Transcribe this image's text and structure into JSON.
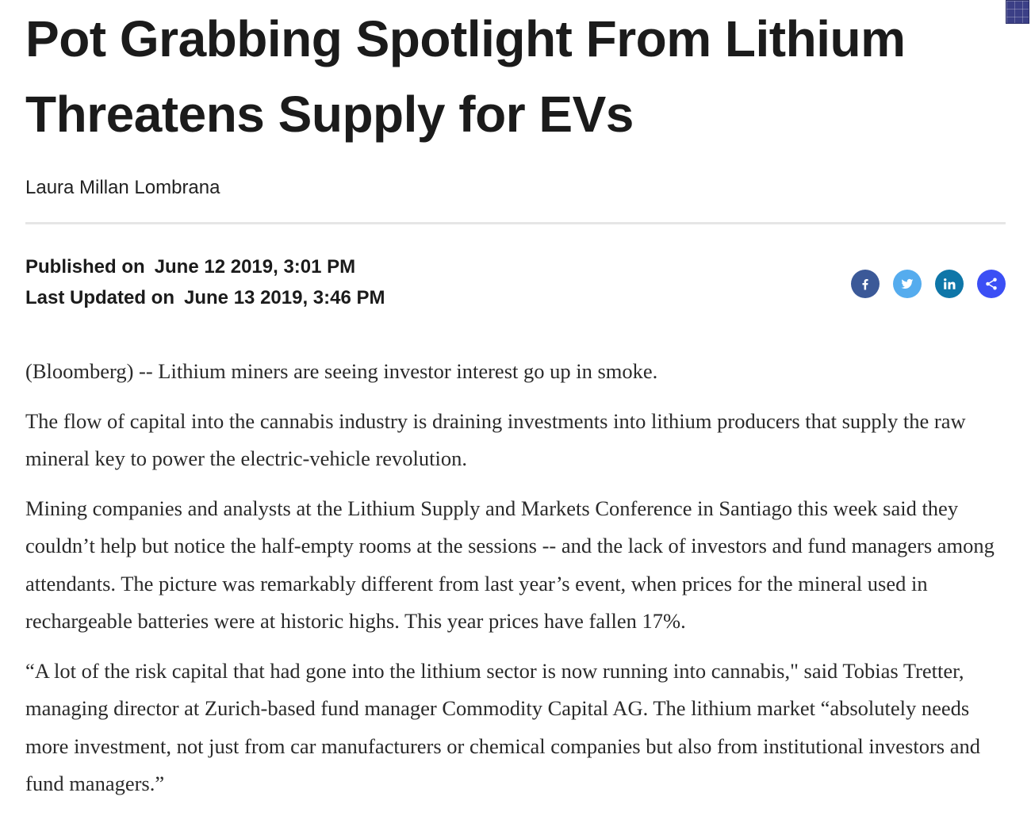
{
  "article": {
    "headline": "Pot Grabbing Spotlight From Lithium Threatens Supply for EVs",
    "author": "Laura Millan Lombrana",
    "published_label": "Published on",
    "published_date": "June 12 2019, 3:01 PM",
    "updated_label": "Last Updated on",
    "updated_date": "June 13 2019, 3:46 PM",
    "paragraphs": [
      "(Bloomberg) -- Lithium miners are seeing investor interest go up in smoke.",
      "The flow of capital into the cannabis industry is draining investments into lithium producers that supply the raw mineral key to power the electric-vehicle revolution.",
      "Mining companies and analysts at the Lithium Supply and Markets Conference in Santiago this week said they couldn’t help but notice the half-empty rooms at the sessions -- and the lack of investors and fund managers among attendants. The picture was remarkably different from last year’s event, when prices for the mineral used in rechargeable batteries were at historic highs. This year prices have fallen 17%.",
      "“A lot of the risk capital that had gone into the lithium sector is now running into cannabis,\" said Tobias Tretter, managing director at Zurich-based fund manager Commodity Capital AG. The lithium market “absolutely needs more investment, not just from car manufacturers or chemical companies but also from institutional investors and fund managers.”"
    ]
  },
  "share": {
    "buttons": [
      {
        "icon": "facebook-icon",
        "color": "#3b5998"
      },
      {
        "icon": "twitter-icon",
        "color": "#55acee"
      },
      {
        "icon": "linkedin-icon",
        "color": "#0e76a8"
      },
      {
        "icon": "share-icon",
        "color": "#3b4ff5"
      }
    ]
  }
}
